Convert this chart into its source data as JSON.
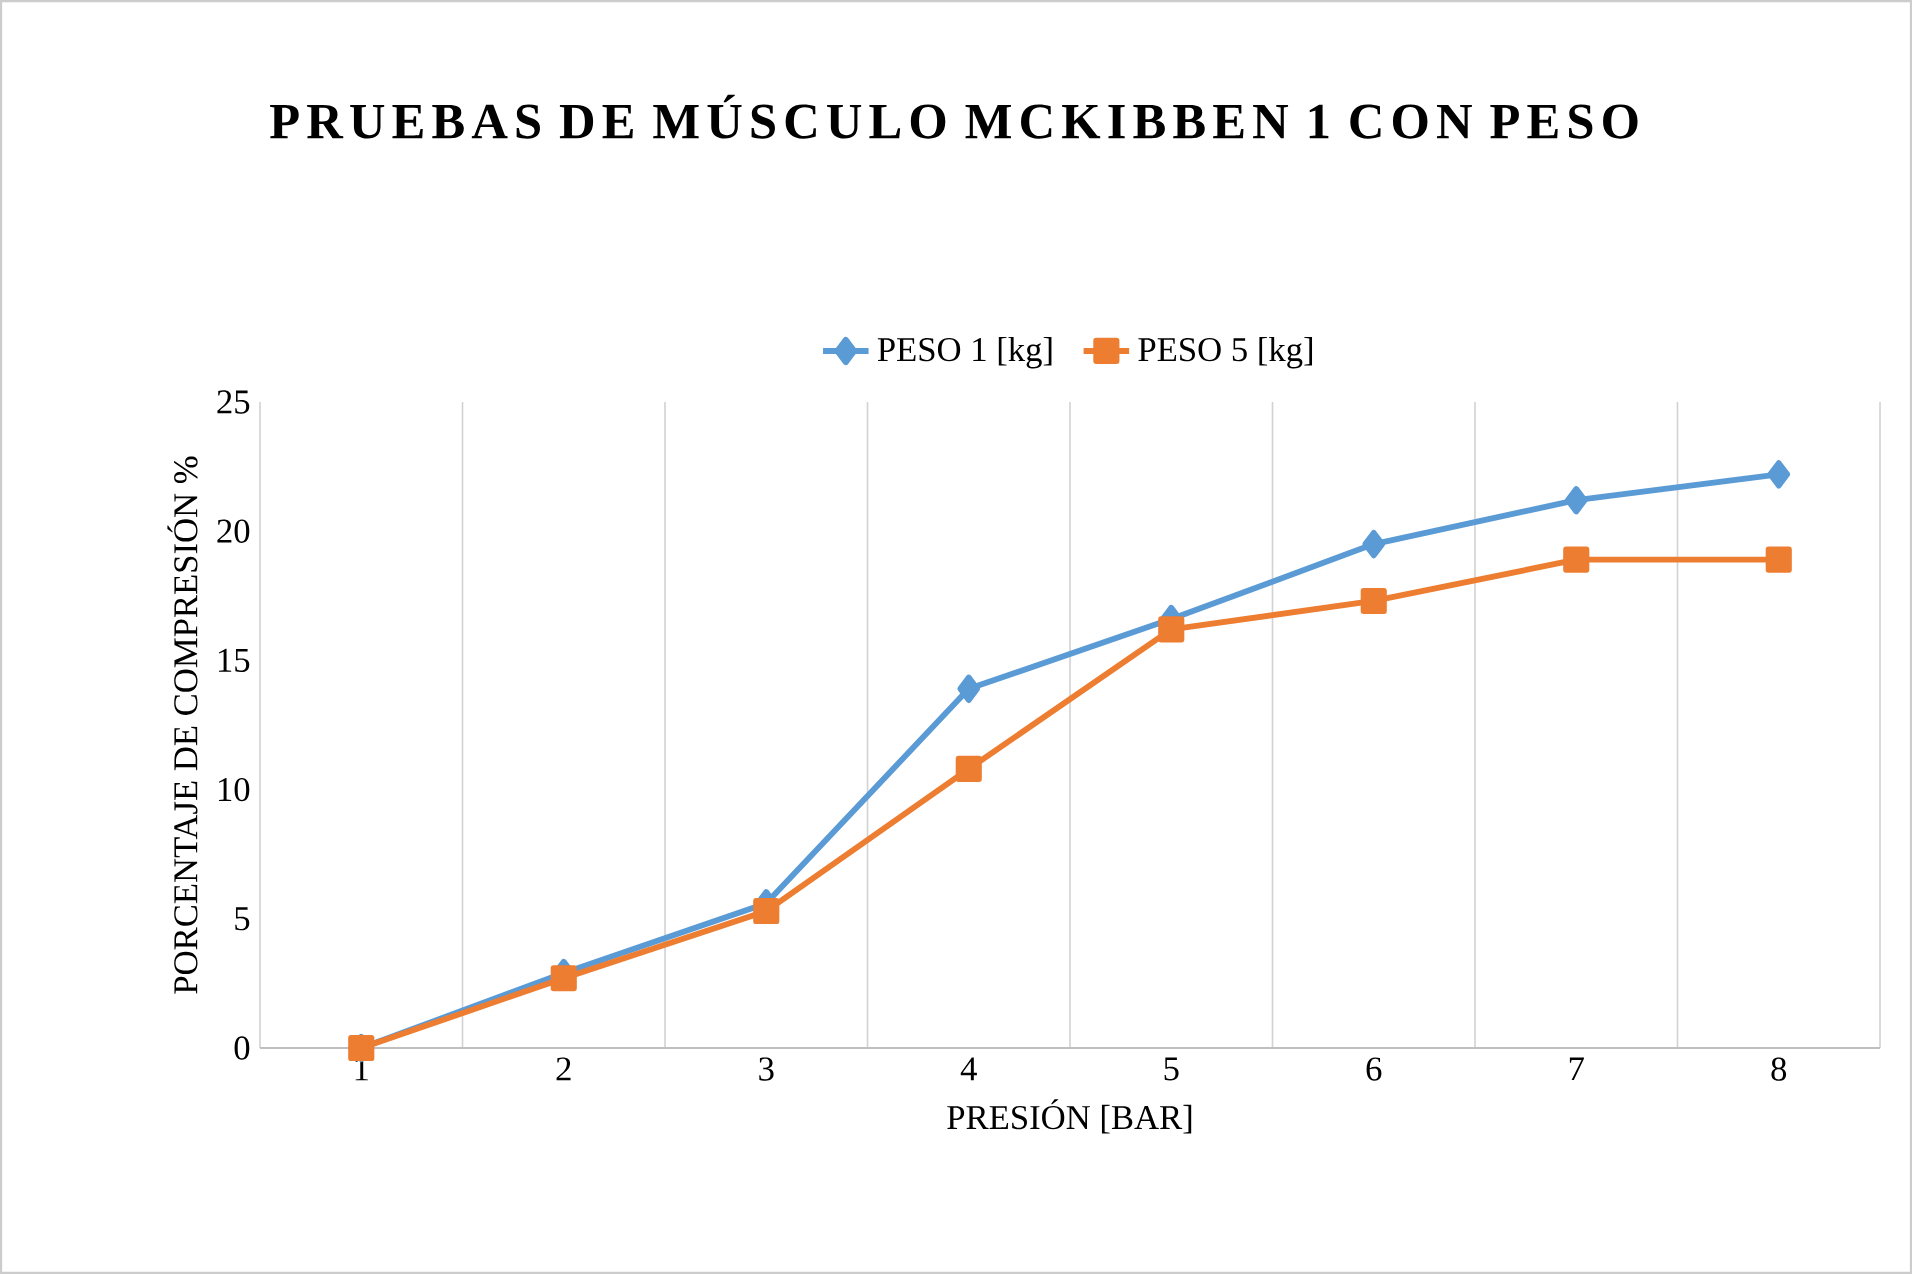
{
  "chart_data": {
    "type": "line",
    "title": "PRUEBAS DE MÚSCULO MCKIBBEN 1 CON PESO",
    "xlabel": "PRESIÓN [BAR]",
    "ylabel": "PORCENTAJE DE COMPRESIÓN %",
    "categories": [
      "1",
      "2",
      "3",
      "4",
      "5",
      "6",
      "7",
      "8"
    ],
    "series": [
      {
        "name": "PESO 1 [kg]",
        "color": "#5b9bd5",
        "marker": "diamond",
        "values": [
          0,
          2.9,
          5.6,
          13.9,
          16.6,
          19.5,
          21.2,
          22.2
        ]
      },
      {
        "name": "PESO 5 [kg]",
        "color": "#ed7d31",
        "marker": "square",
        "values": [
          0,
          2.7,
          5.3,
          10.8,
          16.2,
          17.3,
          18.9,
          18.9
        ]
      }
    ],
    "ylim": [
      0,
      25
    ],
    "yticks": [
      0,
      5,
      10,
      15,
      20,
      25
    ],
    "grid": "x",
    "legend": "top"
  }
}
